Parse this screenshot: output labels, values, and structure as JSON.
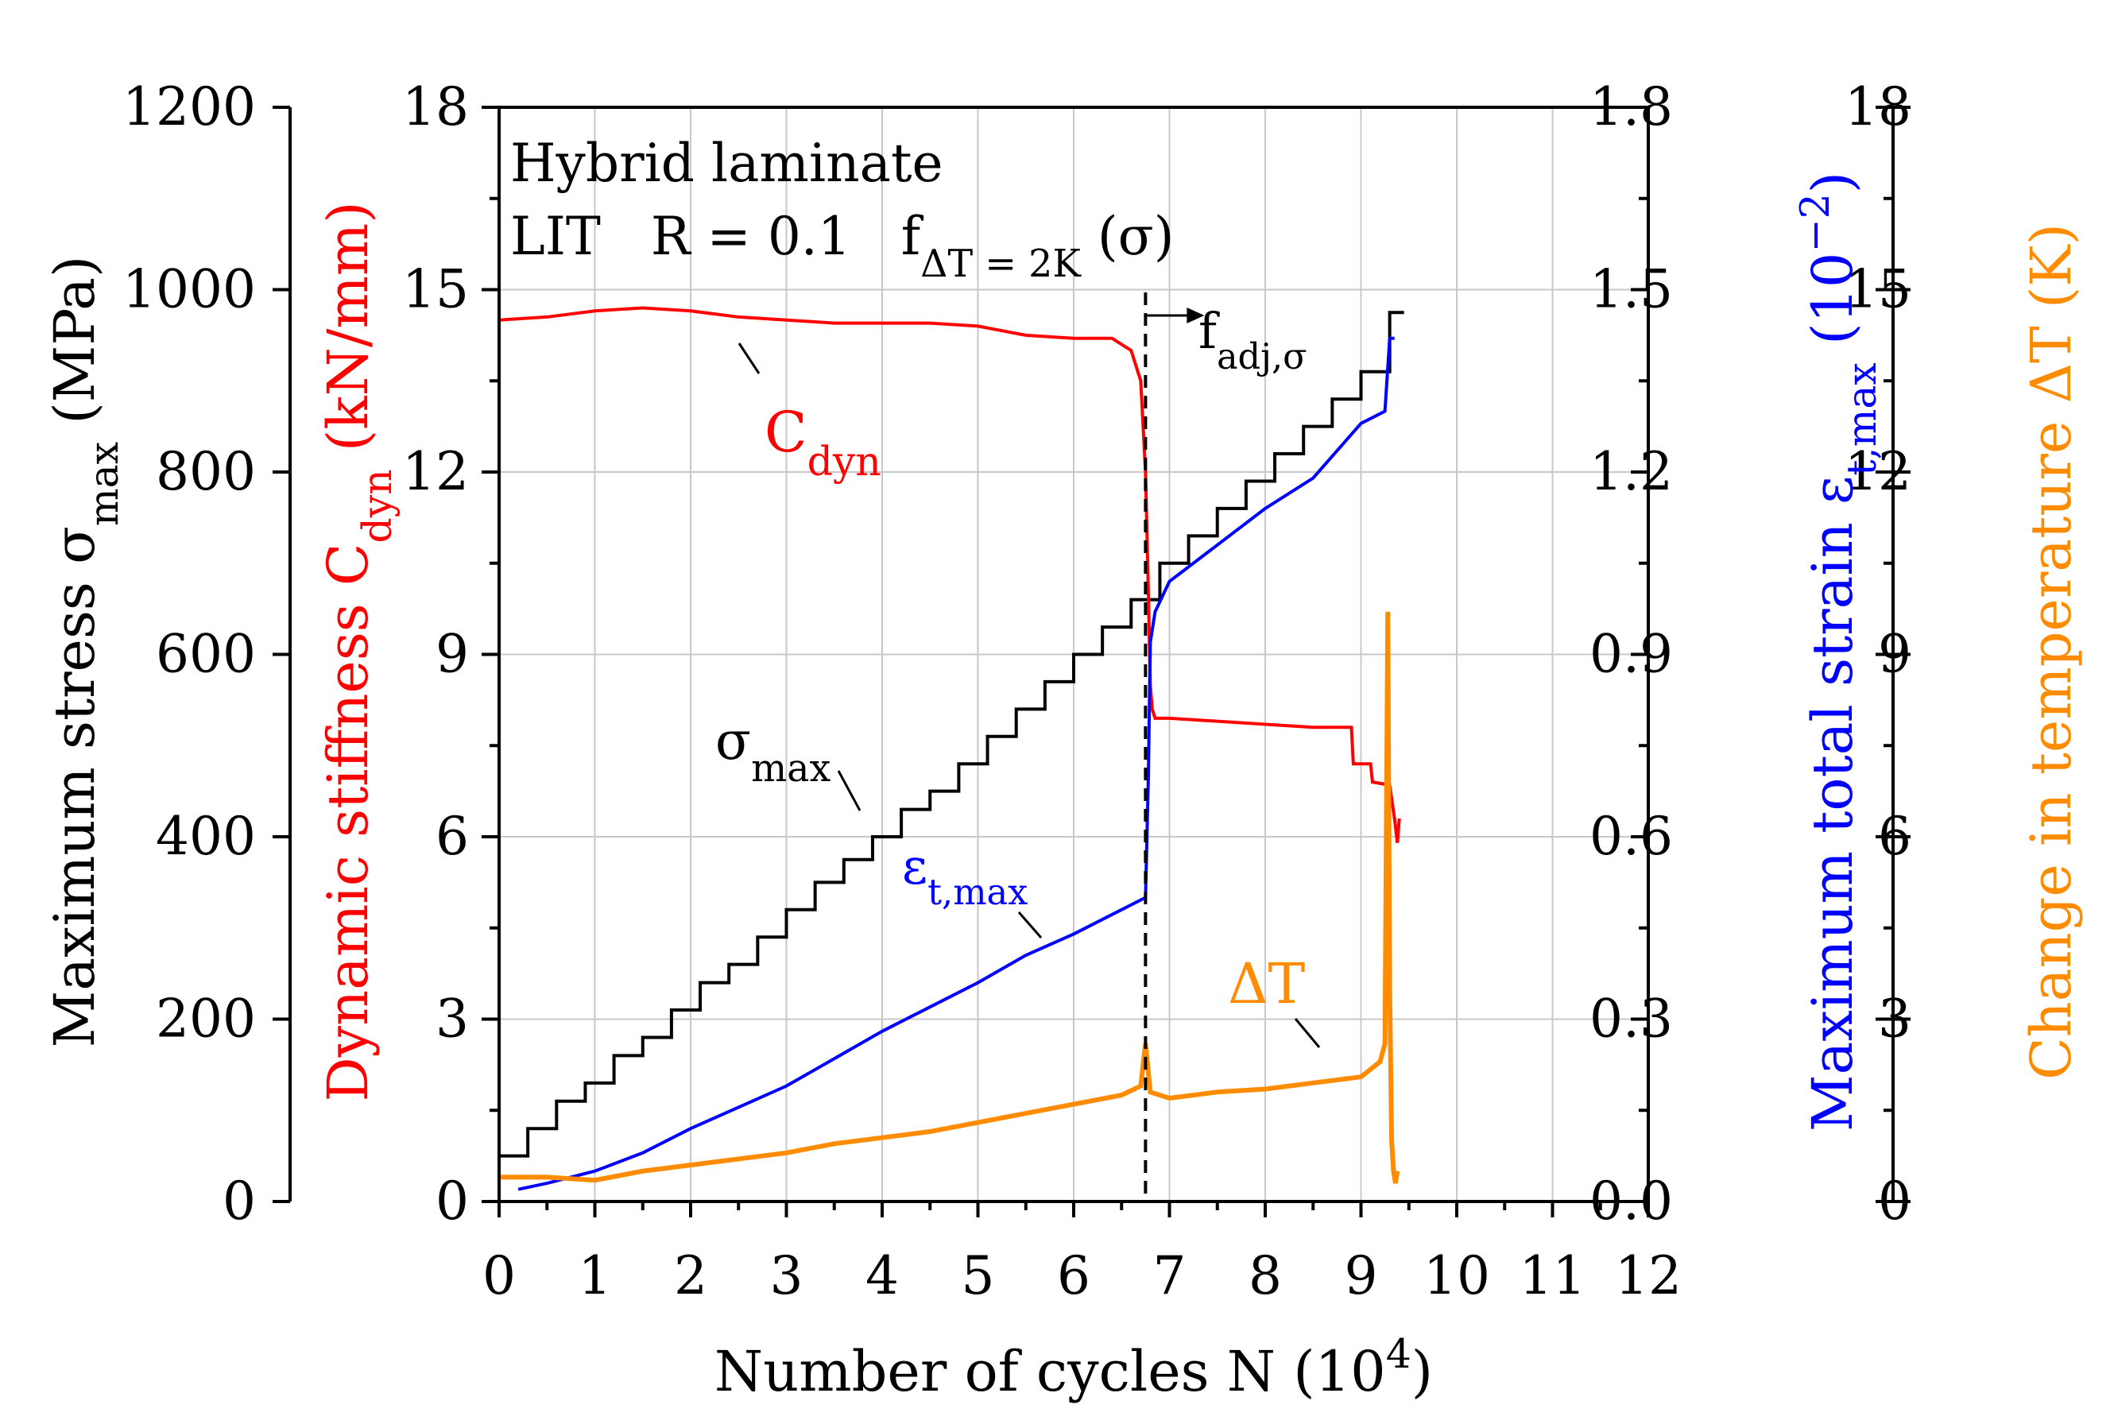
{
  "chart_data": {
    "type": "line",
    "annotation": {
      "line1": "Hybrid laminate",
      "line2_a": "LIT",
      "line2_b": "R = 0.1",
      "line2_c": "f",
      "line2_c_sub": "ΔT = 2K",
      "line2_d": "(σ)"
    },
    "xaxis": {
      "label": "Number of cycles N (10",
      "label_sup": "4",
      "label_end": ")",
      "range": [
        0,
        12
      ],
      "ticks": [
        0,
        1,
        2,
        3,
        4,
        5,
        6,
        7,
        8,
        9,
        10,
        11,
        12
      ],
      "tick_labels": [
        "0",
        "1",
        "2",
        "3",
        "4",
        "5",
        "6",
        "7",
        "8",
        "9",
        "10",
        "11",
        "12"
      ]
    },
    "axes": {
      "stress": {
        "label_main": "Maximum stress σ",
        "label_sub": "max",
        "label_end": " (MPa)",
        "range": [
          0,
          1200
        ],
        "ticks": [
          0,
          200,
          400,
          600,
          800,
          1000,
          1200
        ],
        "tick_labels": [
          "0",
          "200",
          "400",
          "600",
          "800",
          "1000",
          "1200"
        ],
        "color": "#000000"
      },
      "stiffness": {
        "label_main": "Dynamic stiffness C",
        "label_sub": "dyn",
        "label_end": " (kN/mm)",
        "range": [
          0,
          18
        ],
        "ticks": [
          0,
          3,
          6,
          9,
          12,
          15,
          18
        ],
        "tick_labels": [
          "0",
          "3",
          "6",
          "9",
          "12",
          "15",
          "18"
        ],
        "color": "#ff0000"
      },
      "strain": {
        "label_main": "Maximum total strain ε",
        "label_sub": "t,max",
        "label_end": " (10",
        "label_sup": "−2",
        "label_close": ")",
        "range": [
          0,
          1.8
        ],
        "ticks": [
          0,
          0.3,
          0.6,
          0.9,
          1.2,
          1.5,
          1.8
        ],
        "tick_labels": [
          "0.0",
          "0.3",
          "0.6",
          "0.9",
          "1.2",
          "1.5",
          "1.8"
        ],
        "color": "#0000ff"
      },
      "temperature": {
        "label": "Change in temperature ΔT (K)",
        "range": [
          0,
          18
        ],
        "ticks": [
          0,
          3,
          6,
          9,
          12,
          15,
          18
        ],
        "tick_labels": [
          "0",
          "3",
          "6",
          "9",
          "12",
          "15",
          "18"
        ],
        "color": "#ff8c00"
      }
    },
    "series": [
      {
        "name": "σmax",
        "axis": "stress",
        "color": "#000000",
        "step": true,
        "x": [
          0,
          0.3,
          0.6,
          0.9,
          1.2,
          1.5,
          1.8,
          2.1,
          2.4,
          2.7,
          3.0,
          3.3,
          3.6,
          3.9,
          4.2,
          4.5,
          4.8,
          5.1,
          5.4,
          5.7,
          6.0,
          6.3,
          6.6,
          6.9,
          7.2,
          7.5,
          7.8,
          8.1,
          8.4,
          8.7,
          9.0,
          9.3,
          9.45
        ],
        "y": [
          50,
          80,
          110,
          130,
          160,
          180,
          210,
          240,
          260,
          290,
          320,
          350,
          375,
          400,
          430,
          450,
          480,
          510,
          540,
          570,
          600,
          630,
          660,
          700,
          730,
          760,
          790,
          820,
          850,
          880,
          910,
          975,
          975
        ]
      },
      {
        "name": "Cdyn",
        "axis": "stiffness",
        "color": "#ff0000",
        "x": [
          0,
          0.5,
          1,
          1.5,
          2,
          2.5,
          3,
          3.5,
          4,
          4.5,
          5,
          5.5,
          6,
          6.4,
          6.6,
          6.7,
          6.75,
          6.78,
          6.8,
          6.82,
          6.85,
          7,
          7.5,
          8,
          8.5,
          8.9,
          8.92,
          9.1,
          9.12,
          9.3,
          9.35,
          9.38,
          9.4
        ],
        "y": [
          14.5,
          14.55,
          14.65,
          14.7,
          14.65,
          14.55,
          14.5,
          14.45,
          14.45,
          14.45,
          14.4,
          14.25,
          14.2,
          14.2,
          14.0,
          13.5,
          12,
          10,
          8.5,
          8.1,
          7.95,
          7.95,
          7.9,
          7.85,
          7.8,
          7.8,
          7.2,
          7.2,
          6.9,
          6.85,
          6.3,
          5.9,
          6.3
        ]
      },
      {
        "name": "εt,max",
        "axis": "strain",
        "color": "#0000ff",
        "x": [
          0.2,
          0.5,
          1,
          1.5,
          2,
          2.5,
          3,
          3.5,
          4,
          4.5,
          5,
          5.5,
          6,
          6.5,
          6.75,
          6.78,
          6.8,
          6.85,
          7,
          7.5,
          8,
          8.5,
          9,
          9.25,
          9.3,
          9.35
        ],
        "y": [
          0.02,
          0.03,
          0.05,
          0.08,
          0.12,
          0.155,
          0.19,
          0.235,
          0.28,
          0.32,
          0.36,
          0.405,
          0.44,
          0.48,
          0.5,
          0.7,
          0.92,
          0.97,
          1.02,
          1.08,
          1.14,
          1.19,
          1.28,
          1.3,
          1.42,
          1.42
        ]
      },
      {
        "name": "ΔT",
        "axis": "temperature",
        "color": "#ff8c00",
        "x": [
          0,
          0.5,
          1,
          1.5,
          2,
          2.5,
          3,
          3.5,
          4,
          4.5,
          5,
          5.5,
          6,
          6.5,
          6.7,
          6.75,
          6.8,
          7,
          7.5,
          8,
          8.5,
          9,
          9.2,
          9.25,
          9.28,
          9.3,
          9.32,
          9.34,
          9.36,
          9.38
        ],
        "y": [
          0.4,
          0.4,
          0.35,
          0.5,
          0.6,
          0.7,
          0.8,
          0.95,
          1.05,
          1.15,
          1.3,
          1.45,
          1.6,
          1.75,
          1.9,
          2.6,
          1.8,
          1.7,
          1.8,
          1.85,
          1.95,
          2.05,
          2.3,
          2.6,
          9.7,
          3.5,
          1.0,
          0.5,
          0.3,
          0.5
        ]
      }
    ],
    "labels": {
      "cdyn": "C",
      "cdyn_sub": "dyn",
      "sigma": "σ",
      "sigma_sub": "max",
      "eps": "ε",
      "eps_sub": "t,max",
      "dt": "ΔT",
      "fadj": "f",
      "fadj_sub": "adj,σ"
    },
    "markers": {
      "vline_x": 6.75
    },
    "grid": true
  }
}
